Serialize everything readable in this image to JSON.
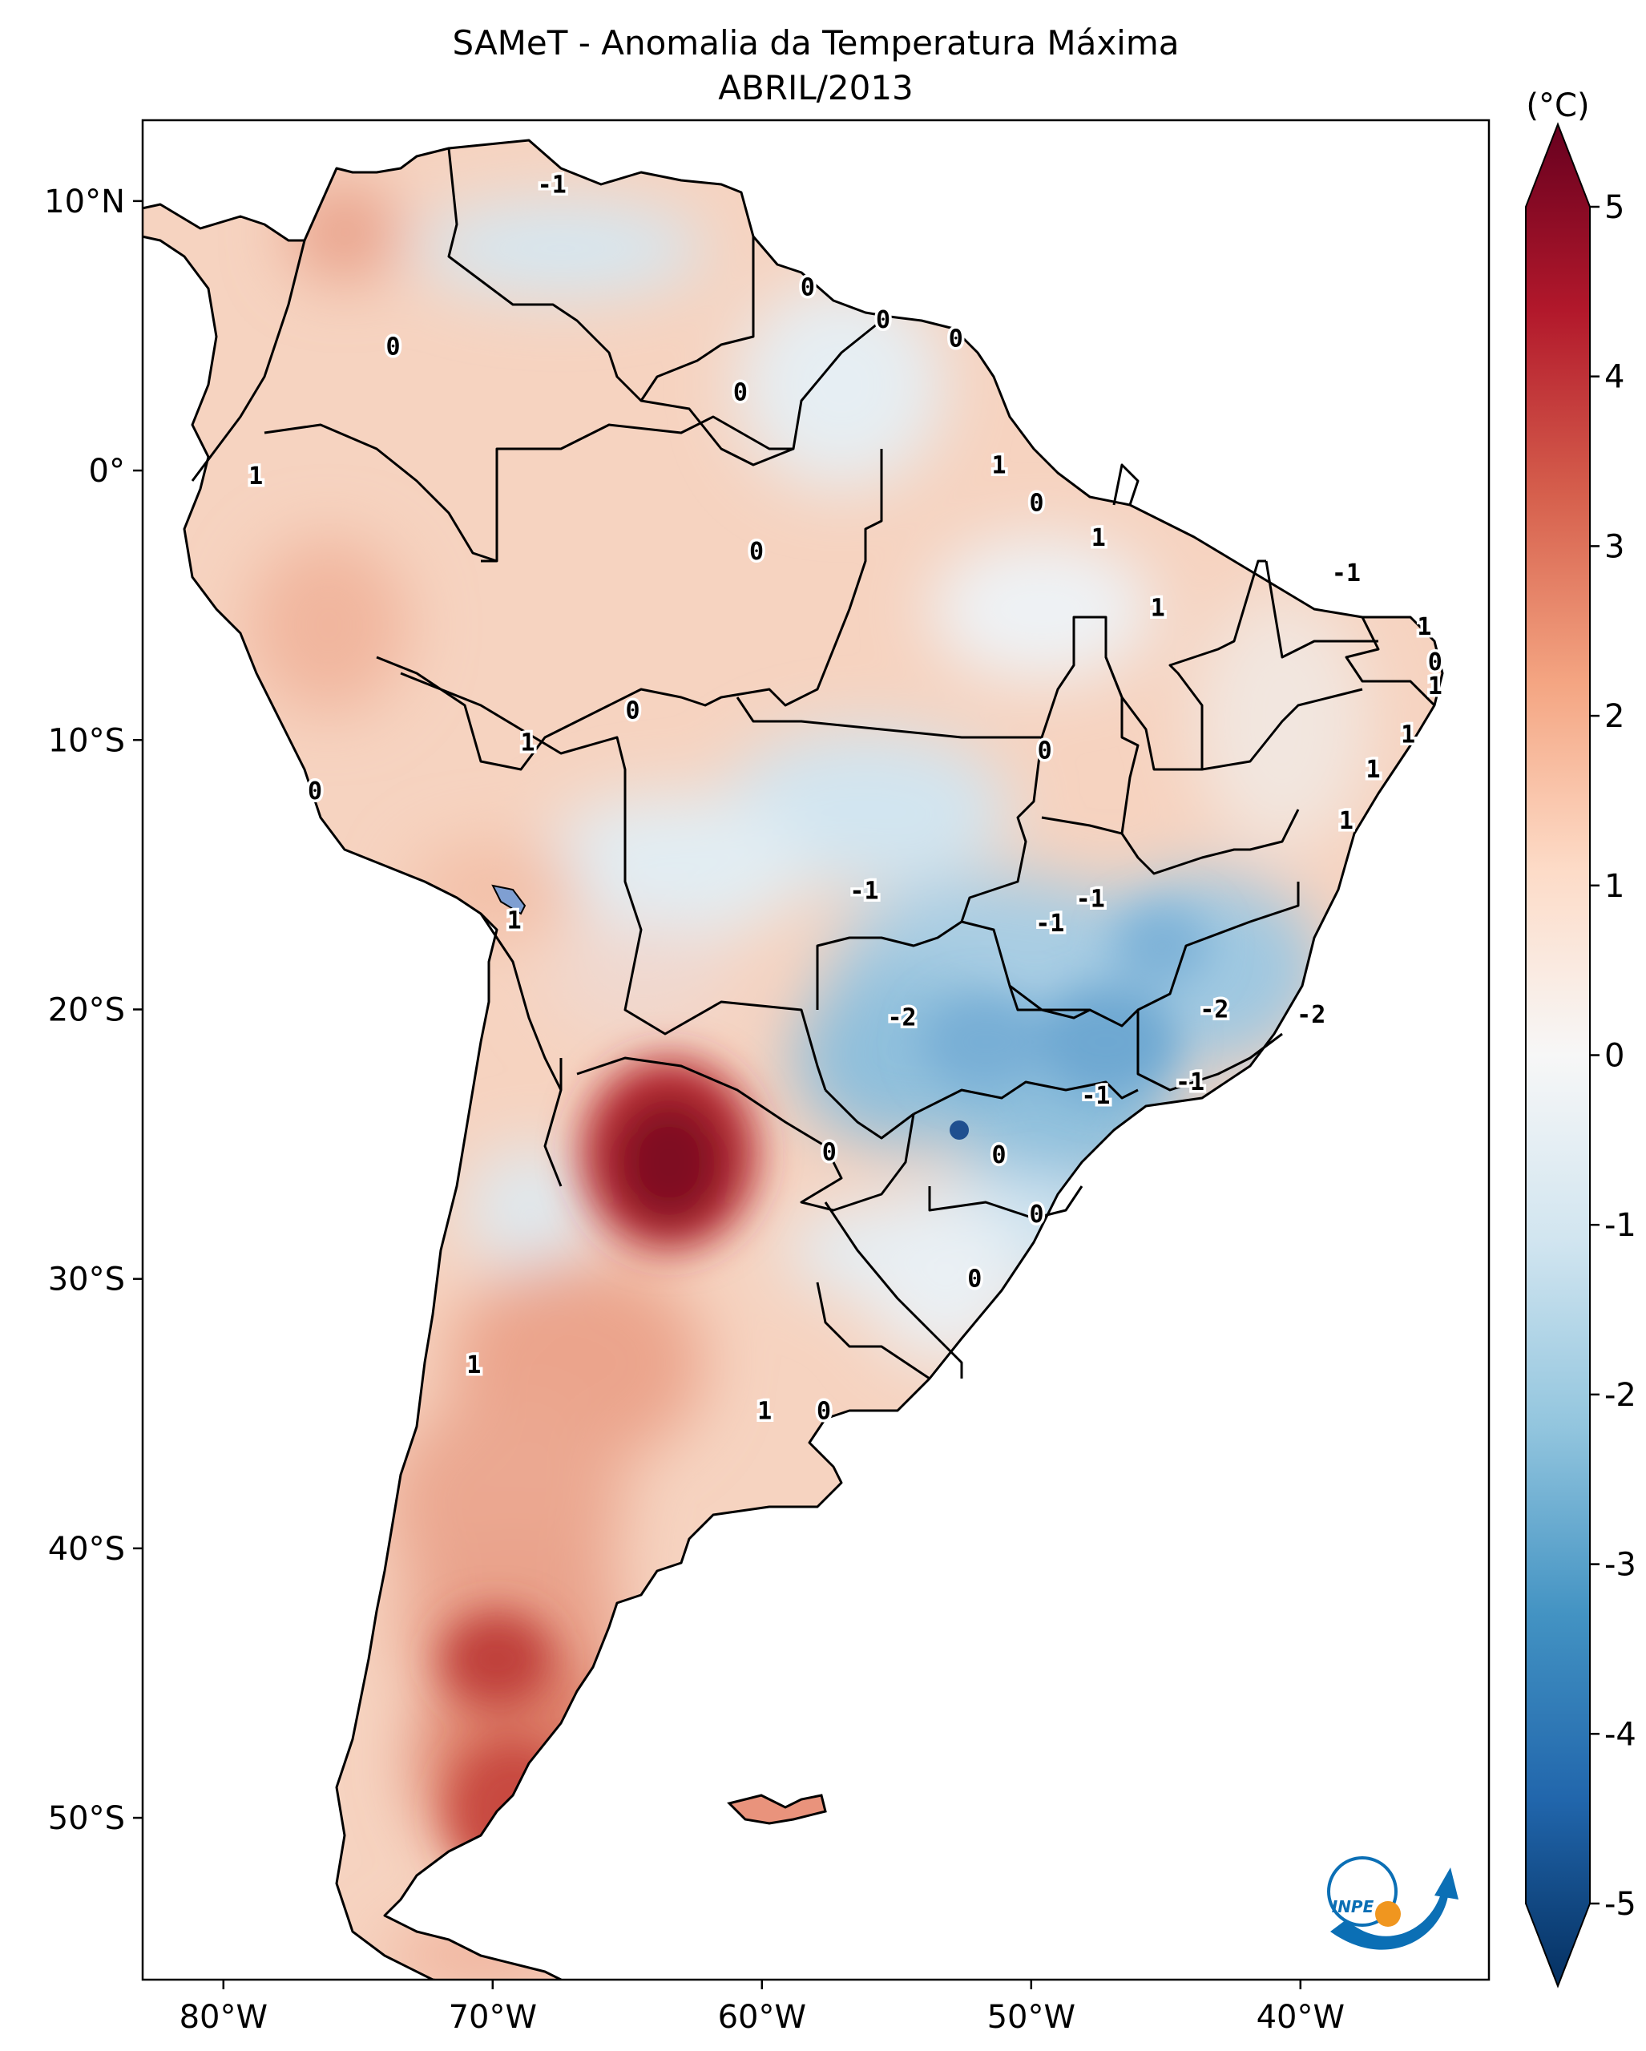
{
  "title": {
    "line1": "SAMeT - Anomalia da Temperatura Máxima",
    "line2": "ABRIL/2013"
  },
  "map": {
    "lon_ticks": [
      "80°W",
      "70°W",
      "60°W",
      "50°W",
      "40°W"
    ],
    "lat_ticks": [
      "10°N",
      "0°",
      "10°S",
      "20°S",
      "30°S",
      "40°S",
      "50°S"
    ],
    "contour_labels": [
      {
        "text": "-1",
        "lon": -67.8,
        "lat": 10.6
      },
      {
        "text": "0",
        "lon": -58.3,
        "lat": 6.8
      },
      {
        "text": "0",
        "lon": -55.5,
        "lat": 5.6
      },
      {
        "text": "0",
        "lon": -52.8,
        "lat": 4.9
      },
      {
        "text": "0",
        "lon": -73.7,
        "lat": 4.6
      },
      {
        "text": "0",
        "lon": -60.8,
        "lat": 2.9
      },
      {
        "text": "1",
        "lon": -51.2,
        "lat": 0.2
      },
      {
        "text": "0",
        "lon": -49.8,
        "lat": -1.2
      },
      {
        "text": "1",
        "lon": -78.8,
        "lat": -0.2
      },
      {
        "text": "0",
        "lon": -60.2,
        "lat": -3.0
      },
      {
        "text": "1",
        "lon": -47.5,
        "lat": -2.5
      },
      {
        "text": "-1",
        "lon": -38.3,
        "lat": -3.8
      },
      {
        "text": "1",
        "lon": -45.3,
        "lat": -5.1
      },
      {
        "text": "1",
        "lon": -35.4,
        "lat": -5.8
      },
      {
        "text": "0",
        "lon": -35.0,
        "lat": -7.1
      },
      {
        "text": "1",
        "lon": -35.0,
        "lat": -8.0
      },
      {
        "text": "0",
        "lon": -64.8,
        "lat": -8.9
      },
      {
        "text": "1",
        "lon": -68.7,
        "lat": -10.1
      },
      {
        "text": "0",
        "lon": -49.5,
        "lat": -10.4
      },
      {
        "text": "1",
        "lon": -36.0,
        "lat": -9.8
      },
      {
        "text": "1",
        "lon": -37.3,
        "lat": -11.1
      },
      {
        "text": "0",
        "lon": -76.6,
        "lat": -11.9
      },
      {
        "text": "1",
        "lon": -38.3,
        "lat": -13.0
      },
      {
        "text": "-1",
        "lon": -56.2,
        "lat": -15.6
      },
      {
        "text": "1",
        "lon": -69.2,
        "lat": -16.7
      },
      {
        "text": "-1",
        "lon": -47.8,
        "lat": -15.9
      },
      {
        "text": "-1",
        "lon": -49.3,
        "lat": -16.8
      },
      {
        "text": "-2",
        "lon": -54.8,
        "lat": -20.3
      },
      {
        "text": "-2",
        "lon": -43.2,
        "lat": -20.0
      },
      {
        "text": "-2",
        "lon": -39.6,
        "lat": -20.2
      },
      {
        "text": "-1",
        "lon": -44.1,
        "lat": -22.7
      },
      {
        "text": "-1",
        "lon": -47.6,
        "lat": -23.2
      },
      {
        "text": "0",
        "lon": -57.5,
        "lat": -25.3
      },
      {
        "text": "0",
        "lon": -51.2,
        "lat": -25.4
      },
      {
        "text": "0",
        "lon": -49.8,
        "lat": -27.6
      },
      {
        "text": "0",
        "lon": -52.1,
        "lat": -30.0
      },
      {
        "text": "1",
        "lon": -70.7,
        "lat": -33.2
      },
      {
        "text": "1",
        "lon": -59.9,
        "lat": -34.9
      },
      {
        "text": "0",
        "lon": -57.7,
        "lat": -34.9
      }
    ],
    "logo_text": "INPE"
  },
  "colorbar": {
    "unit": "(°C)",
    "ticks": [
      "5",
      "4",
      "3",
      "2",
      "1",
      "0",
      "-1",
      "-2",
      "-3",
      "-4",
      "-5"
    ],
    "colors": [
      "#67001f",
      "#b2182b",
      "#d6604d",
      "#f4a582",
      "#fddbc7",
      "#f7f7f7",
      "#d1e5f0",
      "#92c5de",
      "#4393c3",
      "#2166ac",
      "#053061"
    ]
  }
}
